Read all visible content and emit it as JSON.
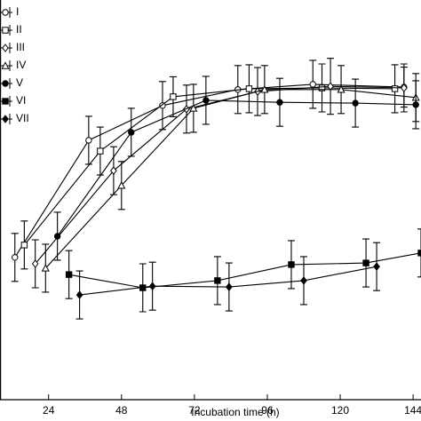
{
  "chart_data": {
    "type": "line",
    "x_label": "Incubation time (h)",
    "xlim": [
      8,
      146.6
    ],
    "xticks": [
      24,
      48,
      72,
      96,
      120,
      144
    ],
    "ylim": [
      0,
      100
    ],
    "series": [
      {
        "name": "I",
        "color": "#000000",
        "marker": "circle",
        "filled": false,
        "x": [
          12.9,
          37.2,
          61.5,
          86.3,
          111,
          141
        ],
        "values": [
          35.6,
          64.9,
          73.6,
          77.6,
          78.9,
          78.2
        ],
        "errors": [
          6,
          6,
          6,
          6,
          6,
          5
        ]
      },
      {
        "name": "II",
        "color": "#000000",
        "marker": "square",
        "filled": false,
        "x": [
          16,
          41,
          65,
          90,
          114,
          138
        ],
        "values": [
          38.7,
          62.2,
          75.8,
          77.8,
          78,
          77.8
        ],
        "errors": [
          6,
          6,
          5,
          6,
          6,
          6
        ]
      },
      {
        "name": "III",
        "color": "#000000",
        "marker": "diamond",
        "filled": false,
        "x": [
          19.6,
          45.4,
          69.4,
          92.8,
          116.8,
          141
        ],
        "values": [
          34,
          57.3,
          72.7,
          77.1,
          78.4,
          78
        ],
        "errors": [
          6,
          6,
          6,
          6,
          7,
          6
        ]
      },
      {
        "name": "IV",
        "color": "#000000",
        "marker": "triangle",
        "filled": false,
        "x": [
          23,
          48,
          71.7,
          95.1,
          120.3,
          144.9
        ],
        "values": [
          32.9,
          53.6,
          72.9,
          77.6,
          77.6,
          75.6
        ],
        "errors": [
          6,
          6,
          6,
          6,
          6,
          6
        ]
      },
      {
        "name": "V",
        "color": "#000000",
        "marker": "circle",
        "filled": true,
        "x": [
          26.9,
          51.2,
          75.8,
          100.1,
          125,
          144.9
        ],
        "values": [
          40.9,
          66.9,
          74.9,
          74.4,
          74.2,
          73.8
        ],
        "errors": [
          6,
          6,
          6,
          6,
          6,
          6
        ]
      },
      {
        "name": "VI",
        "color": "#000000",
        "marker": "square",
        "filled": true,
        "x": [
          30.7,
          55,
          79.6,
          103.9,
          128.5,
          146.6
        ],
        "values": [
          31.3,
          28,
          29.8,
          33.8,
          34.2,
          36.7
        ],
        "errors": [
          6,
          6,
          6,
          6,
          6,
          6
        ]
      },
      {
        "name": "VII",
        "color": "#000000",
        "marker": "diamond",
        "filled": true,
        "x": [
          34.2,
          58.2,
          83.4,
          108,
          132
        ],
        "values": [
          26.2,
          28.4,
          28.2,
          29.8,
          33.3
        ],
        "errors": [
          6,
          6,
          6,
          6,
          6
        ]
      }
    ]
  }
}
